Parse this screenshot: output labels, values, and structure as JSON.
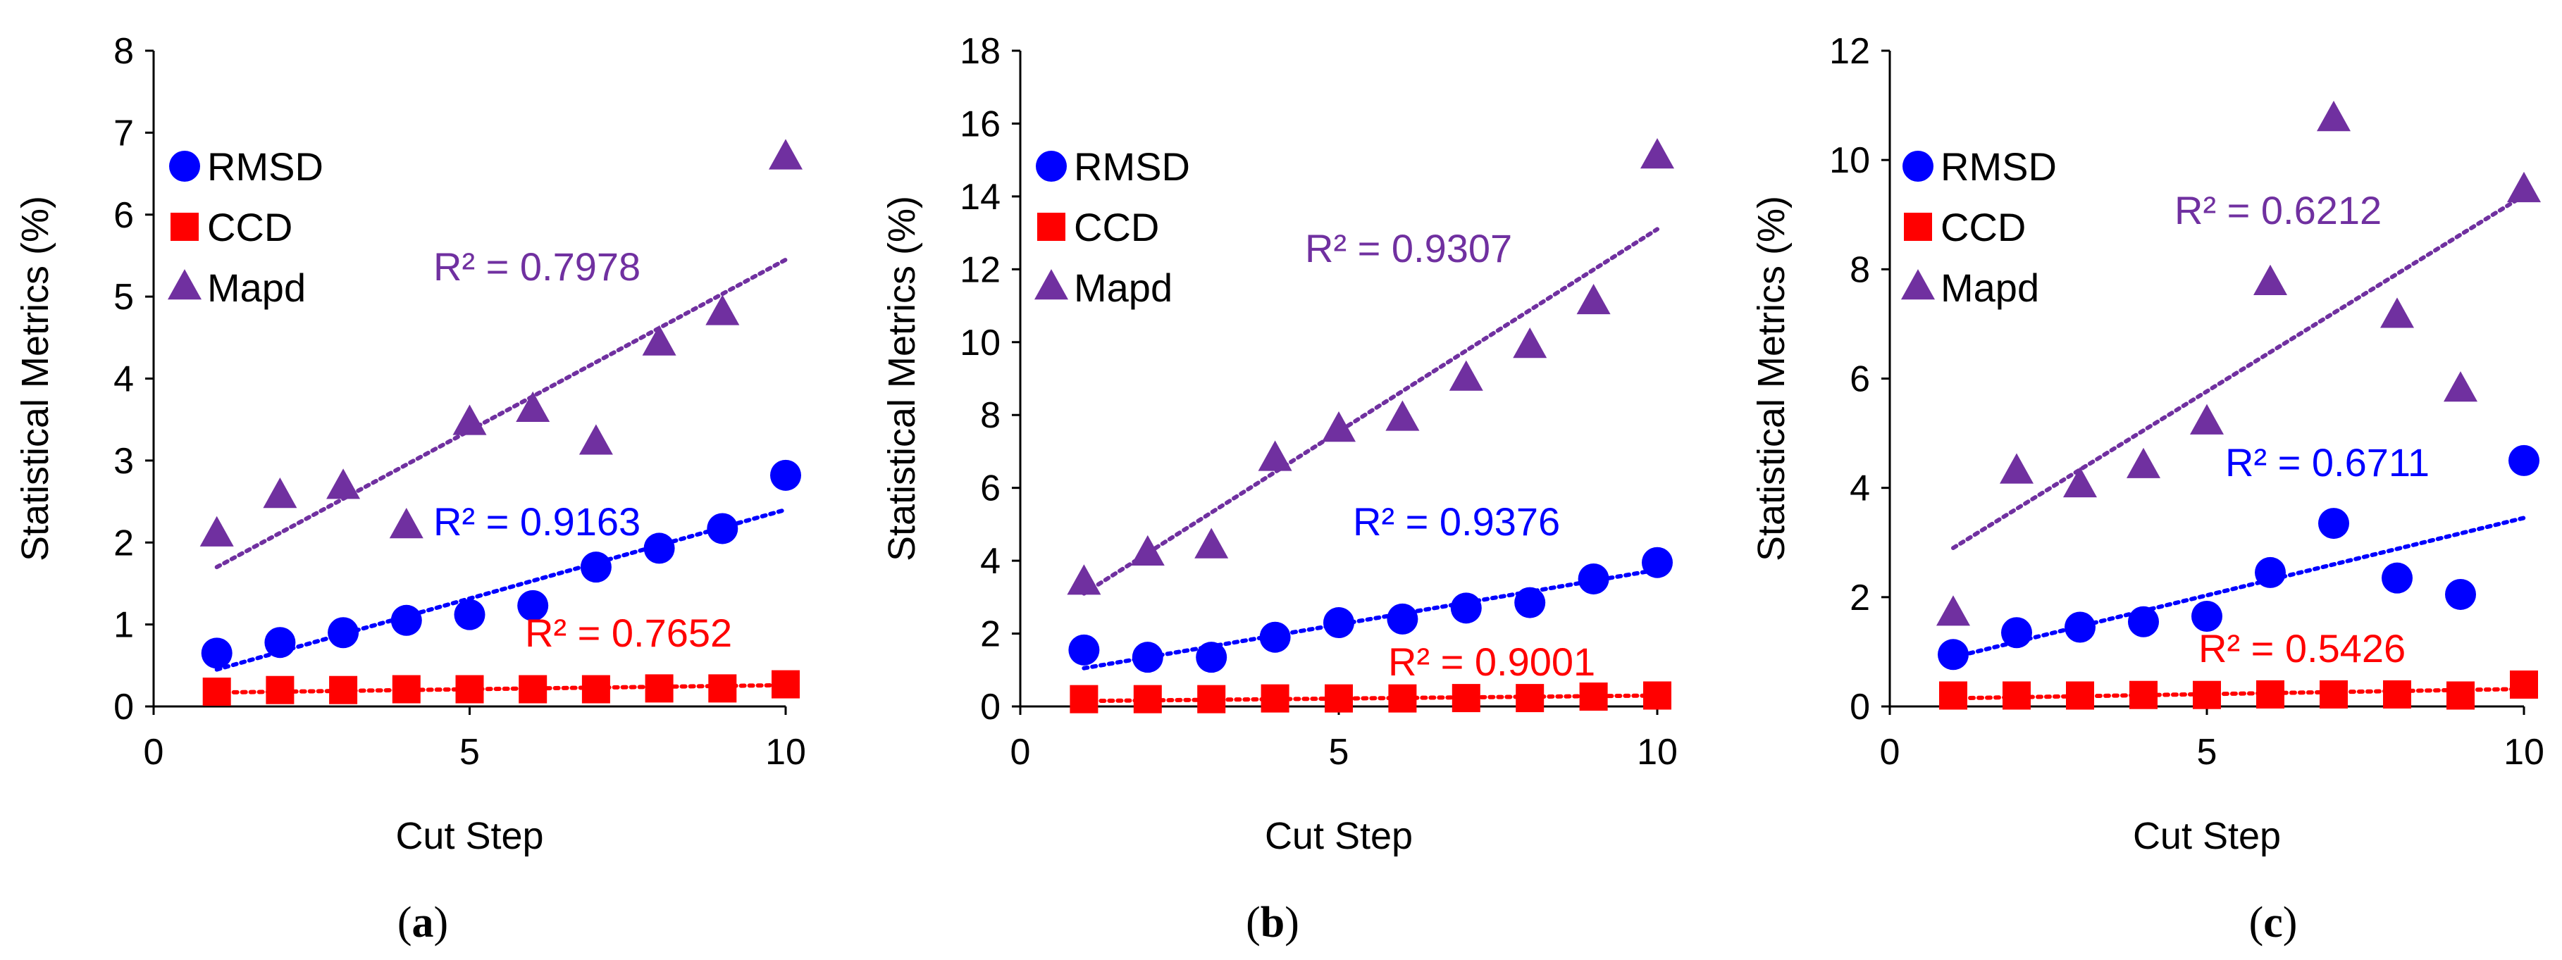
{
  "figure": {
    "captions": [
      "(a)",
      "(b)",
      "(c)"
    ]
  },
  "chart_data": [
    {
      "type": "scatter",
      "panel": "a",
      "caption": "(a)",
      "xlabel": "Cut Step",
      "ylabel": "Statistical Metrics (%)",
      "xlim": [
        0,
        10
      ],
      "ylim": [
        0,
        8
      ],
      "xticks": [
        0,
        5,
        10
      ],
      "yticks": [
        0,
        1,
        2,
        3,
        4,
        5,
        6,
        7,
        8
      ],
      "legend_position": "top-left",
      "series": [
        {
          "name": "RMSD",
          "marker": "circle",
          "color": "#0000ff",
          "x": [
            1,
            2,
            3,
            4,
            5,
            6,
            7,
            8,
            9,
            10
          ],
          "values": [
            0.65,
            0.78,
            0.9,
            1.05,
            1.12,
            1.23,
            1.7,
            1.93,
            2.17,
            2.82
          ],
          "trend": {
            "y_start": 0.45,
            "y_end": 2.4
          },
          "r2_label": "R² = 0.9163"
        },
        {
          "name": "CCD",
          "marker": "square",
          "color": "#ff0000",
          "x": [
            1,
            2,
            3,
            4,
            5,
            6,
            7,
            8,
            9,
            10
          ],
          "values": [
            0.18,
            0.2,
            0.2,
            0.21,
            0.21,
            0.21,
            0.21,
            0.22,
            0.22,
            0.27
          ],
          "trend": {
            "y_start": 0.17,
            "y_end": 0.26
          },
          "r2_label": "R² = 0.7652"
        },
        {
          "name": "Mapd",
          "marker": "triangle",
          "color": "#7030a0",
          "x": [
            1,
            2,
            3,
            4,
            5,
            6,
            7,
            8,
            9,
            10
          ],
          "values": [
            2.1,
            2.57,
            2.68,
            2.2,
            3.46,
            3.62,
            3.22,
            4.43,
            4.8,
            6.7
          ],
          "trend": {
            "y_start": 1.7,
            "y_end": 5.45
          },
          "r2_label": "R² = 0.7978"
        }
      ]
    },
    {
      "type": "scatter",
      "panel": "b",
      "caption": "(b)",
      "xlabel": "Cut Step",
      "ylabel": "Statistical Metrics (%)",
      "xlim": [
        0,
        10
      ],
      "ylim": [
        0,
        18
      ],
      "xticks": [
        0,
        5,
        10
      ],
      "yticks": [
        0,
        2,
        4,
        6,
        8,
        10,
        12,
        14,
        16,
        18
      ],
      "legend_position": "top-left",
      "series": [
        {
          "name": "RMSD",
          "marker": "circle",
          "color": "#0000ff",
          "x": [
            1,
            2,
            3,
            4,
            5,
            6,
            7,
            8,
            9,
            10
          ],
          "values": [
            1.55,
            1.35,
            1.35,
            1.9,
            2.3,
            2.4,
            2.7,
            2.85,
            3.5,
            3.95
          ],
          "trend": {
            "y_start": 1.05,
            "y_end": 3.75
          },
          "r2_label": "R² = 0.9376"
        },
        {
          "name": "CCD",
          "marker": "square",
          "color": "#ff0000",
          "x": [
            1,
            2,
            3,
            4,
            5,
            6,
            7,
            8,
            9,
            10
          ],
          "values": [
            0.2,
            0.2,
            0.2,
            0.22,
            0.22,
            0.22,
            0.23,
            0.23,
            0.27,
            0.3
          ],
          "trend": {
            "y_start": 0.15,
            "y_end": 0.3
          },
          "r2_label": "R² = 0.9001"
        },
        {
          "name": "Mapd",
          "marker": "triangle",
          "color": "#7030a0",
          "x": [
            1,
            2,
            3,
            4,
            5,
            6,
            7,
            8,
            9,
            10
          ],
          "values": [
            3.4,
            4.2,
            4.4,
            6.8,
            7.6,
            7.9,
            9.0,
            9.9,
            11.1,
            15.1
          ],
          "trend": {
            "y_start": 3.1,
            "y_end": 13.1
          },
          "r2_label": "R² = 0.9307"
        }
      ]
    },
    {
      "type": "scatter",
      "panel": "c",
      "caption": "(c)",
      "xlabel": "Cut Step",
      "ylabel": "Statistical Metrics (%)",
      "xlim": [
        0,
        10
      ],
      "ylim": [
        0,
        12
      ],
      "xticks": [
        0,
        5,
        10
      ],
      "yticks": [
        0,
        2,
        4,
        6,
        8,
        10,
        12
      ],
      "legend_position": "top-left",
      "series": [
        {
          "name": "RMSD",
          "marker": "circle",
          "color": "#0000ff",
          "x": [
            1,
            2,
            3,
            4,
            5,
            6,
            7,
            8,
            9,
            10
          ],
          "values": [
            0.95,
            1.35,
            1.45,
            1.55,
            1.65,
            2.45,
            3.35,
            2.35,
            2.05,
            4.5
          ],
          "trend": {
            "y_start": 0.9,
            "y_end": 3.45
          },
          "r2_label": "R² = 0.6711"
        },
        {
          "name": "CCD",
          "marker": "square",
          "color": "#ff0000",
          "x": [
            1,
            2,
            3,
            4,
            5,
            6,
            7,
            8,
            9,
            10
          ],
          "values": [
            0.2,
            0.2,
            0.2,
            0.21,
            0.21,
            0.22,
            0.22,
            0.22,
            0.2,
            0.4
          ],
          "trend": {
            "y_start": 0.15,
            "y_end": 0.32
          },
          "r2_label": "R² = 0.5426"
        },
        {
          "name": "Mapd",
          "marker": "triangle",
          "color": "#7030a0",
          "x": [
            1,
            2,
            3,
            4,
            5,
            6,
            7,
            8,
            9,
            10
          ],
          "values": [
            1.7,
            4.3,
            4.05,
            4.4,
            5.2,
            7.75,
            10.75,
            7.15,
            5.8,
            9.45
          ],
          "trend": {
            "y_start": 2.9,
            "y_end": 9.35
          },
          "r2_label": "R² = 0.6212"
        }
      ]
    }
  ]
}
